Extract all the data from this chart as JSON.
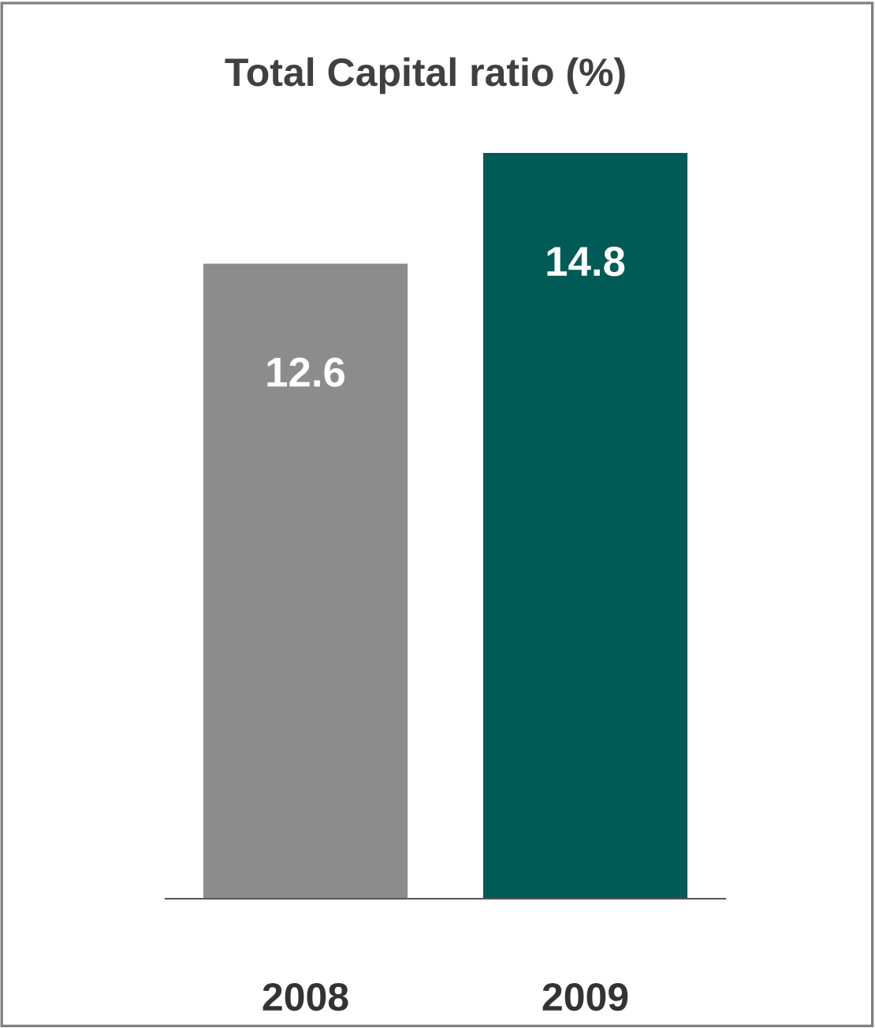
{
  "chart_data": {
    "type": "bar",
    "title": "Total Capital ratio (%)",
    "categories": [
      "2008",
      "2009"
    ],
    "values": [
      12.6,
      14.8
    ],
    "colors": [
      "#8c8c8c",
      "#005a55"
    ],
    "data_labels": true,
    "grid": false,
    "legend": false
  }
}
